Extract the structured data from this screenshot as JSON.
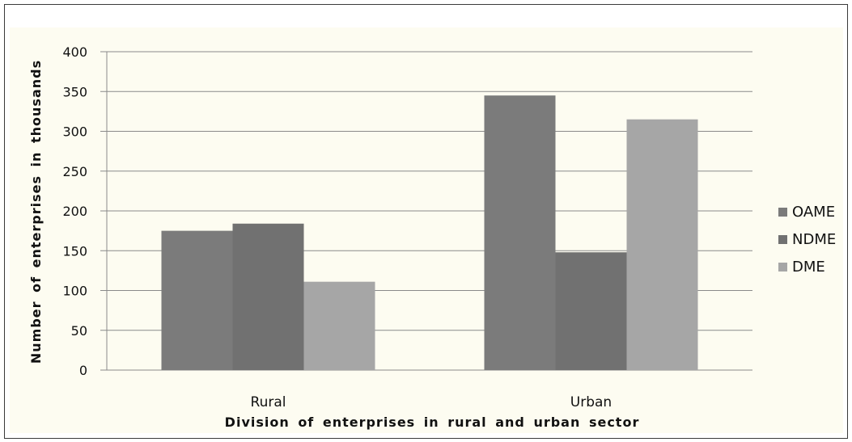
{
  "chart_data": {
    "type": "bar",
    "title": "",
    "xlabel": "Division of enterprises in rural and urban sector",
    "ylabel": "Number of enterprises in thousands",
    "categories": [
      "Rural",
      "Urban"
    ],
    "series": [
      {
        "name": "OAME",
        "values": [
          175,
          345
        ],
        "color": "#7b7b7b"
      },
      {
        "name": "NDME",
        "values": [
          184,
          148
        ],
        "color": "#717171"
      },
      {
        "name": "DME",
        "values": [
          111,
          315
        ],
        "color": "#a6a6a6"
      }
    ],
    "ylim": [
      0,
      400
    ],
    "yticks": [
      "0",
      "50",
      "100",
      "150",
      "200",
      "250",
      "300",
      "350",
      "400"
    ],
    "grid": true,
    "legend_position": "right"
  }
}
